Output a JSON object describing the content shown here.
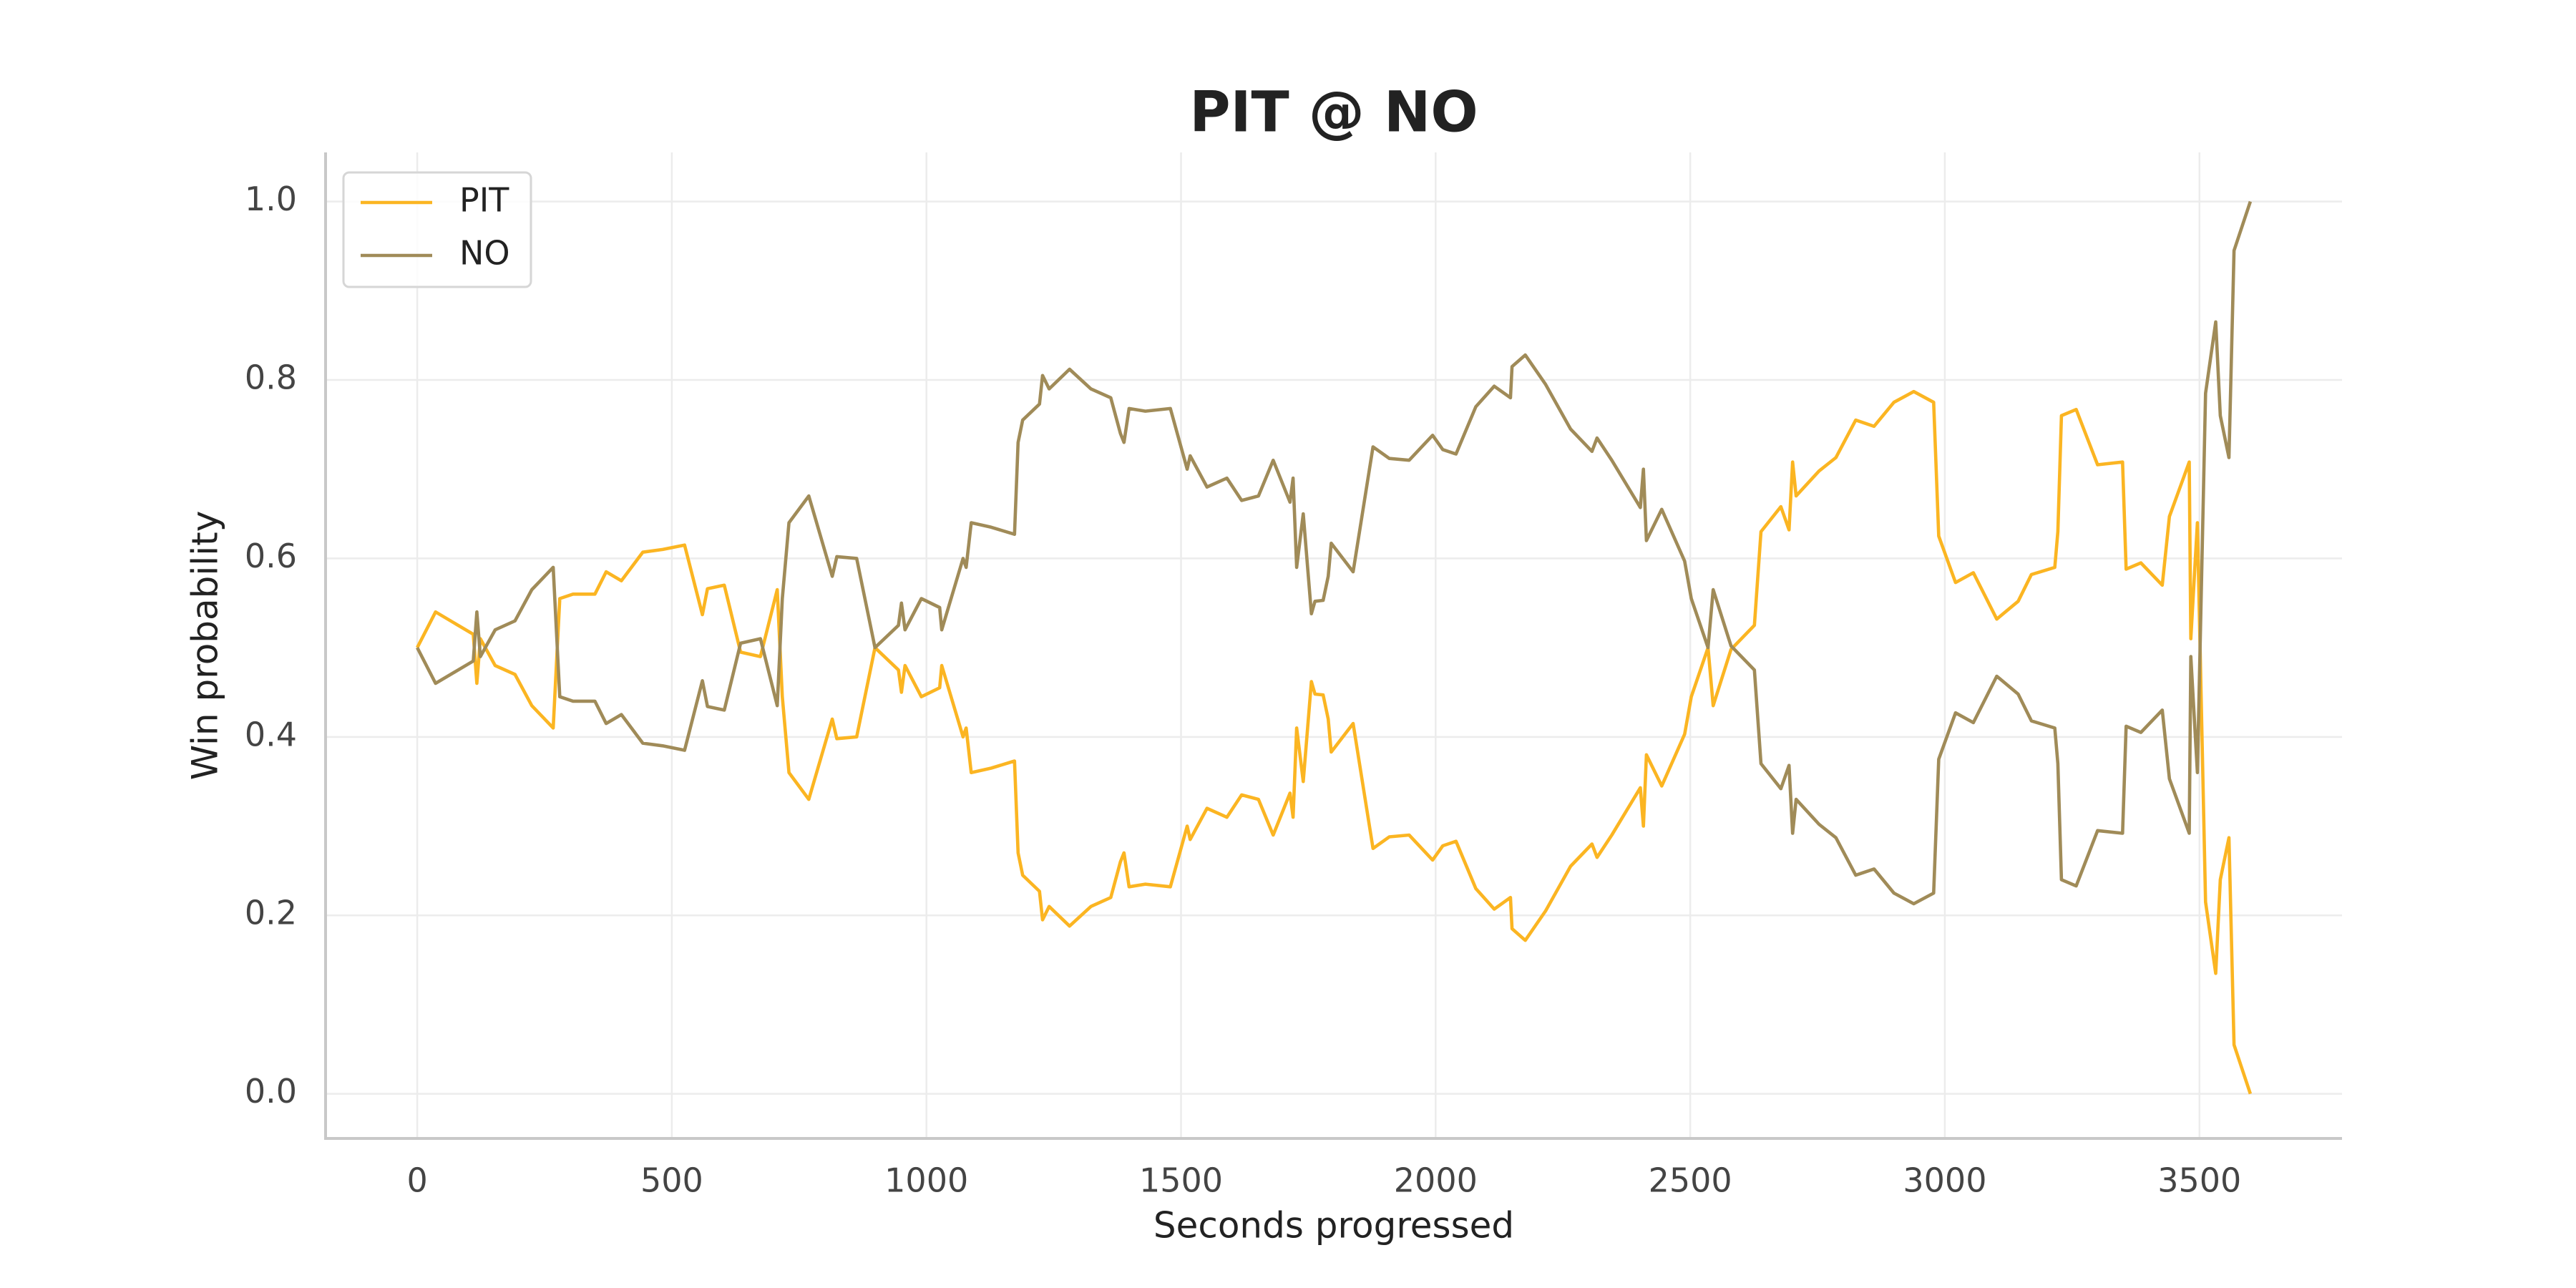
{
  "chart_data": {
    "type": "line",
    "title": "PIT @ NO",
    "xlabel": "Seconds progressed",
    "ylabel": "Win probability",
    "x": [
      0,
      36,
      110,
      117,
      124,
      153,
      192,
      225,
      267,
      280,
      306,
      349,
      371,
      401,
      443,
      482,
      525,
      560,
      570,
      603,
      635,
      674,
      707,
      717,
      730,
      769,
      815,
      824,
      863,
      899,
      945,
      951,
      958,
      990,
      1026,
      1030,
      1072,
      1078,
      1088,
      1127,
      1173,
      1180,
      1189,
      1222,
      1228,
      1241,
      1281,
      1323,
      1362,
      1381,
      1388,
      1398,
      1430,
      1479,
      1512,
      1518,
      1551,
      1590,
      1619,
      1652,
      1681,
      1714,
      1720,
      1727,
      1740,
      1756,
      1763,
      1779,
      1789,
      1795,
      1838,
      1877,
      1909,
      1948,
      1994,
      2014,
      2040,
      2079,
      2115,
      2147,
      2150,
      2176,
      2216,
      2265,
      2307,
      2317,
      2346,
      2402,
      2408,
      2414,
      2444,
      2489,
      2502,
      2535,
      2545,
      2580,
      2626,
      2639,
      2678,
      2694,
      2701,
      2708,
      2753,
      2786,
      2825,
      2861,
      2900,
      2939,
      2978,
      2988,
      3021,
      3056,
      3102,
      3144,
      3170,
      3216,
      3222,
      3229,
      3258,
      3300,
      3349,
      3356,
      3385,
      3427,
      3441,
      3480,
      3483,
      3496,
      3512,
      3532,
      3541,
      3558,
      3568,
      3600
    ],
    "series": [
      {
        "name": "PIT",
        "color": "#fbb522",
        "values": [
          0.5,
          0.54,
          0.515,
          0.46,
          0.51,
          0.48,
          0.47,
          0.435,
          0.41,
          0.555,
          0.56,
          0.56,
          0.585,
          0.575,
          0.607,
          0.61,
          0.615,
          0.537,
          0.566,
          0.57,
          0.495,
          0.49,
          0.565,
          0.445,
          0.36,
          0.33,
          0.42,
          0.398,
          0.4,
          0.5,
          0.475,
          0.45,
          0.48,
          0.445,
          0.455,
          0.48,
          0.4,
          0.41,
          0.36,
          0.365,
          0.373,
          0.27,
          0.245,
          0.227,
          0.195,
          0.21,
          0.188,
          0.21,
          0.22,
          0.26,
          0.27,
          0.232,
          0.235,
          0.232,
          0.3,
          0.285,
          0.32,
          0.31,
          0.335,
          0.33,
          0.29,
          0.337,
          0.31,
          0.41,
          0.35,
          0.462,
          0.448,
          0.447,
          0.42,
          0.383,
          0.415,
          0.275,
          0.288,
          0.29,
          0.262,
          0.278,
          0.283,
          0.23,
          0.207,
          0.22,
          0.185,
          0.172,
          0.205,
          0.255,
          0.28,
          0.265,
          0.29,
          0.343,
          0.3,
          0.38,
          0.345,
          0.403,
          0.445,
          0.5,
          0.435,
          0.498,
          0.525,
          0.63,
          0.658,
          0.632,
          0.708,
          0.67,
          0.698,
          0.713,
          0.755,
          0.748,
          0.775,
          0.787,
          0.775,
          0.625,
          0.573,
          0.584,
          0.532,
          0.552,
          0.582,
          0.59,
          0.63,
          0.76,
          0.767,
          0.705,
          0.708,
          0.588,
          0.595,
          0.57,
          0.647,
          0.708,
          0.51,
          0.64,
          0.215,
          0.135,
          0.24,
          0.287,
          0.055,
          0.0
        ]
      },
      {
        "name": "NO",
        "color": "#a08b58",
        "values": [
          0.5,
          0.46,
          0.485,
          0.54,
          0.49,
          0.52,
          0.53,
          0.565,
          0.59,
          0.445,
          0.44,
          0.44,
          0.415,
          0.425,
          0.393,
          0.39,
          0.385,
          0.463,
          0.434,
          0.43,
          0.505,
          0.51,
          0.435,
          0.555,
          0.64,
          0.67,
          0.58,
          0.602,
          0.6,
          0.5,
          0.525,
          0.55,
          0.52,
          0.555,
          0.545,
          0.52,
          0.6,
          0.59,
          0.64,
          0.635,
          0.627,
          0.73,
          0.755,
          0.773,
          0.805,
          0.79,
          0.812,
          0.79,
          0.78,
          0.74,
          0.73,
          0.768,
          0.765,
          0.768,
          0.7,
          0.715,
          0.68,
          0.69,
          0.665,
          0.67,
          0.71,
          0.663,
          0.69,
          0.59,
          0.65,
          0.538,
          0.552,
          0.553,
          0.58,
          0.617,
          0.585,
          0.725,
          0.712,
          0.71,
          0.738,
          0.722,
          0.717,
          0.77,
          0.793,
          0.78,
          0.815,
          0.828,
          0.795,
          0.745,
          0.72,
          0.735,
          0.71,
          0.657,
          0.7,
          0.62,
          0.655,
          0.597,
          0.555,
          0.5,
          0.565,
          0.502,
          0.475,
          0.37,
          0.342,
          0.368,
          0.292,
          0.33,
          0.302,
          0.287,
          0.245,
          0.252,
          0.225,
          0.213,
          0.225,
          0.375,
          0.427,
          0.416,
          0.468,
          0.448,
          0.418,
          0.41,
          0.37,
          0.24,
          0.233,
          0.295,
          0.292,
          0.412,
          0.405,
          0.43,
          0.353,
          0.292,
          0.49,
          0.36,
          0.785,
          0.865,
          0.76,
          0.713,
          0.945,
          1.0
        ]
      }
    ],
    "xlim": [
      -180,
      3780
    ],
    "ylim": [
      -0.05,
      1.055
    ],
    "xticks": [
      0,
      500,
      1000,
      1500,
      2000,
      2500,
      3000,
      3500
    ],
    "yticks": [
      {
        "value": 0,
        "label": "0.0"
      },
      0.2,
      0.4,
      0.6,
      0.8,
      {
        "value": 1,
        "label": "1.0"
      }
    ],
    "grid": true,
    "legend": "upper left"
  }
}
